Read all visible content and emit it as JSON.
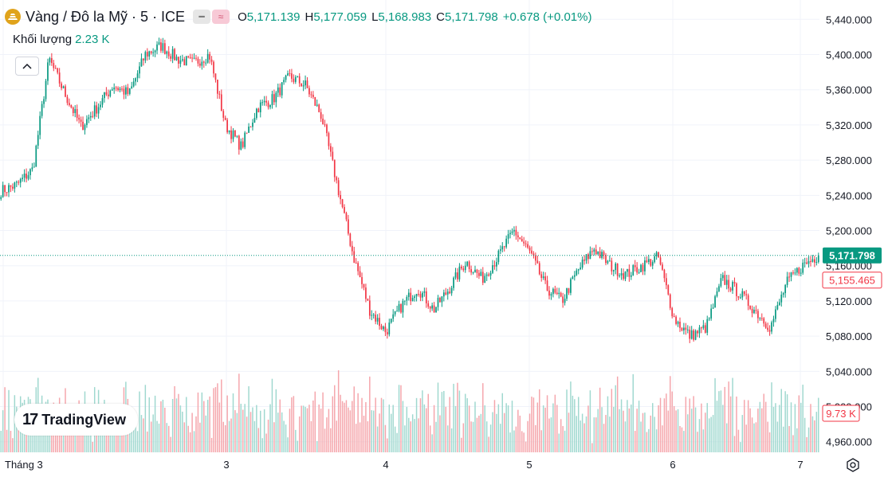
{
  "header": {
    "title": "Vàng / Đô la Mỹ · 5 · ICE",
    "open_label": "O",
    "open": "5,171.139",
    "high_label": "H",
    "high": "5,177.059",
    "low_label": "L",
    "low": "5,168.983",
    "close_label": "C",
    "close": "5,171.798",
    "change": "+0.678 (+0.01%)"
  },
  "volume": {
    "label": "Khối lượng",
    "value": "2.23 K",
    "last_badge": "9.73 K"
  },
  "brand": {
    "name": "TradingView",
    "mark": "17"
  },
  "colors": {
    "up": "#089981",
    "down": "#f23645",
    "vol_up": "#9fd8cf",
    "vol_down": "#f5a5ab",
    "grid": "#f0f3fa"
  },
  "chart_data": {
    "type": "candlestick",
    "y_axis": {
      "ylim": [
        4948,
        5462
      ],
      "ticks": [
        "4,960.000",
        "5,000.000",
        "5,040.000",
        "5,080.000",
        "5,120.000",
        "5,160.000",
        "5,200.000",
        "5,240.000",
        "5,280.000",
        "5,320.000",
        "5,360.000",
        "5,400.000",
        "5,440.000"
      ]
    },
    "x_axis": {
      "ticks": [
        "Tháng 3",
        "3",
        "4",
        "5",
        "6",
        "7"
      ]
    },
    "last_price": 5171.798,
    "last_price_label": "5,171.798",
    "prev_close": 5155.465,
    "prev_close_label": "5,155.465",
    "price_path": [
      [
        "Tháng 3",
        5245
      ],
      [
        "",
        5252
      ],
      [
        "",
        5270
      ],
      [
        "",
        5395
      ],
      [
        "",
        5355
      ],
      [
        "",
        5318
      ],
      [
        "",
        5340
      ],
      [
        "",
        5365
      ],
      [
        "",
        5355
      ],
      [
        "",
        5400
      ],
      [
        "",
        5410
      ],
      [
        "",
        5395
      ],
      [
        "",
        5390
      ],
      [
        "",
        5400
      ],
      [
        "3",
        5320
      ],
      [
        "",
        5295
      ],
      [
        "",
        5340
      ],
      [
        "",
        5350
      ],
      [
        "",
        5375
      ],
      [
        "",
        5365
      ],
      [
        "",
        5330
      ],
      [
        "",
        5250
      ],
      [
        "",
        5170
      ],
      [
        "",
        5110
      ],
      [
        "4",
        5085
      ],
      [
        "",
        5115
      ],
      [
        "",
        5135
      ],
      [
        "",
        5110
      ],
      [
        "",
        5135
      ],
      [
        "",
        5165
      ],
      [
        "",
        5145
      ],
      [
        "",
        5170
      ],
      [
        "",
        5200
      ],
      [
        "5",
        5175
      ],
      [
        "",
        5135
      ],
      [
        "",
        5120
      ],
      [
        "",
        5155
      ],
      [
        "",
        5180
      ],
      [
        "",
        5160
      ],
      [
        "",
        5150
      ],
      [
        "",
        5160
      ],
      [
        "",
        5170
      ],
      [
        "6",
        5100
      ],
      [
        "",
        5080
      ],
      [
        "",
        5090
      ],
      [
        "",
        5145
      ],
      [
        "",
        5130
      ],
      [
        "",
        5110
      ],
      [
        "",
        5090
      ],
      [
        "",
        5140
      ],
      [
        "7",
        5160
      ],
      [
        "",
        5171.798
      ]
    ]
  }
}
